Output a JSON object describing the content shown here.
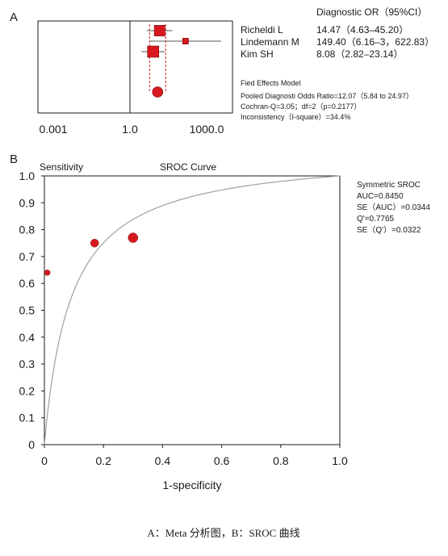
{
  "panel_a": {
    "panel_label": "A",
    "header": "Diagnostic  OR（95%CI）",
    "studies": [
      {
        "name": "Richeldi L",
        "or_text": "14.47（4.63–45.20）"
      },
      {
        "name": "Lindemann M",
        "or_text": "149.40（6.16–3，622.83）"
      },
      {
        "name": "Kim SH",
        "or_text": "8.08（2.82–23.14）"
      }
    ],
    "x_ticks": [
      "0.001",
      "1.0",
      "1000.0"
    ],
    "model_title": "Fied Effects Model",
    "pooled_text": "Pooled Diagnosti Odds Ratio=12.07（5.84 to 24.97）",
    "cochran_text": "Cochran-Q=3.05；df=2（p=0.2177）",
    "inconsistency_text": "Inconsistency（I-square）=34.4%"
  },
  "panel_b": {
    "panel_label": "B",
    "ylabel": "Sensitivity",
    "title": "SROC Curve",
    "xlabel": "1-specificity",
    "x_ticks": [
      "0",
      "0.2",
      "0.4",
      "0.6",
      "0.8",
      "1.0"
    ],
    "y_ticks": [
      "0",
      "0.1",
      "0.2",
      "0.3",
      "0.4",
      "0.5",
      "0.6",
      "0.7",
      "0.8",
      "0.9",
      "1.0"
    ],
    "sroc_title": "Symmetric  SROC",
    "auc_text": "AUC=0.8450",
    "se_auc_text": "SE（AUC）=0.0344",
    "q_text": "Q'=0.7765",
    "se_q_text": "SE（Q'）=0.0322"
  },
  "caption": "A：Meta 分析图，B：SROC 曲线",
  "colors": {
    "marker": "#d7191f",
    "curve": "#a0a0a0",
    "axis": "#1a1a1a",
    "ci": "#555555"
  },
  "chart_data": [
    {
      "type": "forest",
      "title": "",
      "x_scale": "log",
      "xlim": [
        0.001,
        1000
      ],
      "reference_line": 1,
      "studies": [
        {
          "name": "Richeldi L",
          "or": 14.47,
          "lower": 4.63,
          "upper": 45.2
        },
        {
          "name": "Lindemann M",
          "or": 149.4,
          "lower": 6.16,
          "upper": 3622.83
        },
        {
          "name": "Kim SH",
          "or": 8.08,
          "lower": 2.82,
          "upper": 23.14
        }
      ],
      "pooled": {
        "or": 12.07,
        "lower": 5.84,
        "upper": 24.97
      }
    },
    {
      "type": "scatter",
      "title": "SROC Curve",
      "xlabel": "1-specificity",
      "ylabel": "Sensitivity",
      "xlim": [
        0,
        1
      ],
      "ylim": [
        0,
        1
      ],
      "grid": false,
      "points": [
        {
          "x": 0.01,
          "y": 0.64
        },
        {
          "x": 0.17,
          "y": 0.75
        },
        {
          "x": 0.3,
          "y": 0.77
        }
      ],
      "curve": {
        "dor": 12.07
      }
    }
  ]
}
